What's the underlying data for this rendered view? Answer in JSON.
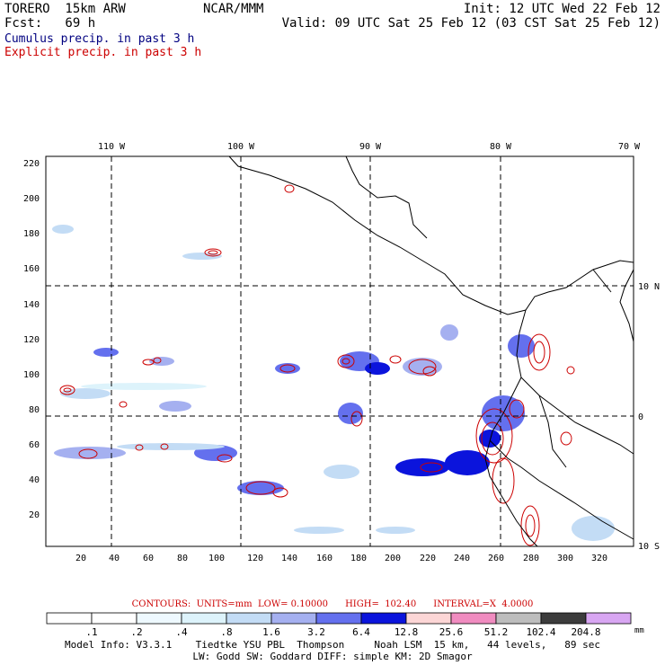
{
  "header": {
    "model": "TORERO  15km ARW",
    "center": "NCAR/MMM",
    "init": "Init: 12 UTC Wed 22 Feb 12",
    "fcst": "Fcst:   69 h",
    "valid": "Valid: 09 UTC Sat 25 Feb 12 (03 CST Sat 25 Feb 12)",
    "legend_cumulus": "Cumulus precip. in past 3 h",
    "legend_explicit": "Explicit precip. in past 3 h"
  },
  "colors": {
    "cumulus": "#000080",
    "explicit": "#cc0000"
  },
  "map": {
    "lon_labels": [
      "110 W",
      "100 W",
      "90 W",
      "80 W",
      "70 W"
    ],
    "lat_labels": [
      "10 N",
      "0",
      "10 S"
    ],
    "x_ticks": [
      "20",
      "40",
      "60",
      "80",
      "100",
      "120",
      "140",
      "160",
      "180",
      "200",
      "220",
      "240",
      "260",
      "280",
      "300",
      "320"
    ],
    "y_ticks": [
      "220",
      "200",
      "180",
      "160",
      "140",
      "120",
      "100",
      "80",
      "60",
      "40",
      "20"
    ]
  },
  "contour_info": "CONTOURS:  UNITS=mm  LOW= 0.10000      HIGH=  102.40      INTERVAL=X  4.0000",
  "colorbar": {
    "labels": [
      ".1",
      ".2",
      ".4",
      ".8",
      "1.6",
      "3.2",
      "6.4",
      "12.8",
      "25.6",
      "51.2",
      "102.4",
      "204.8"
    ],
    "unit": "mm",
    "colors": [
      "#ffffff",
      "#ffffff",
      "#eef9ff",
      "#ddf3fb",
      "#c3dcf5",
      "#a5b0f0",
      "#6470ee",
      "#0b14dc",
      "#fcd6d6",
      "#f08cc0",
      "#bdbdbd",
      "#3c3c3c",
      "#d8a6f2"
    ]
  },
  "footer": {
    "line1": "Model Info: V3.3.1    Tiedtke YSU PBL  Thompson     Noah LSM  15 km,   44 levels,   89 sec",
    "line2": "LW: Godd SW: Goddard DIFF: simple KM: 2D Smagor"
  }
}
